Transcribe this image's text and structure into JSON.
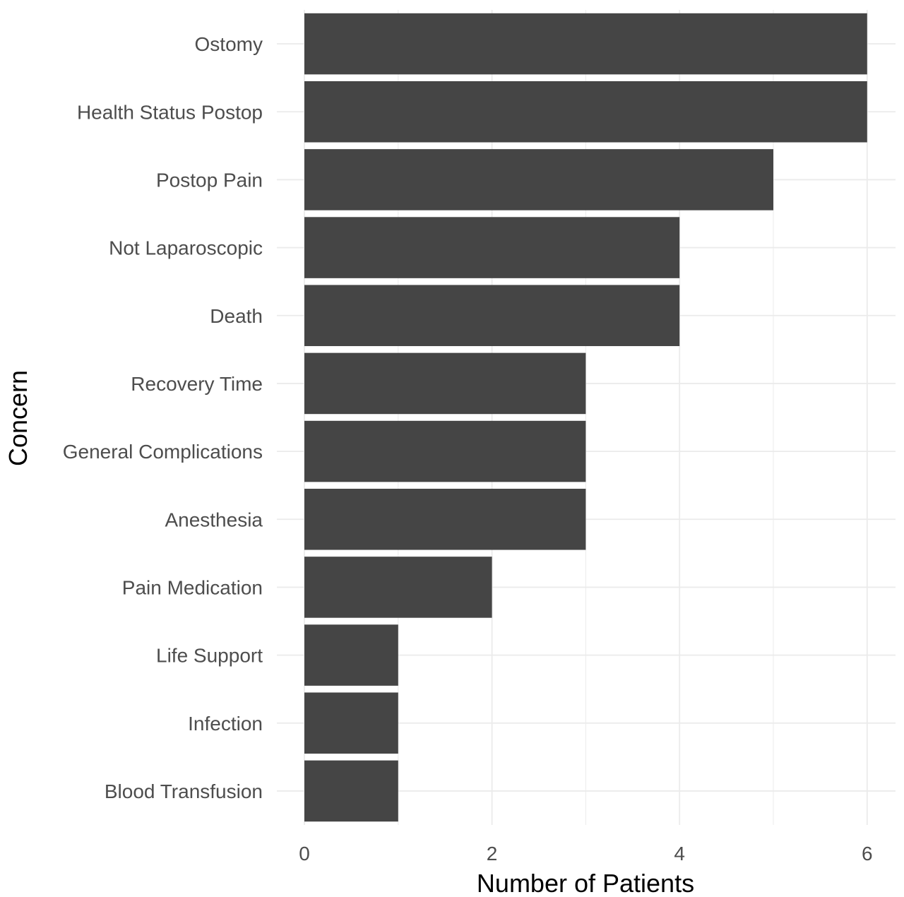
{
  "chart_data": {
    "type": "bar",
    "orientation": "horizontal",
    "categories": [
      "Ostomy",
      "Health Status Postop",
      "Postop Pain",
      "Not Laparoscopic",
      "Death",
      "Recovery Time",
      "General Complications",
      "Anesthesia",
      "Pain Medication",
      "Life Support",
      "Infection",
      "Blood Transfusion"
    ],
    "values": [
      6,
      6,
      5,
      4,
      4,
      3,
      3,
      3,
      2,
      1,
      1,
      1
    ],
    "xlabel": "Number of Patients",
    "ylabel": "Concern",
    "xlim": [
      0,
      6.3
    ],
    "x_ticks": [
      0,
      2,
      4,
      6
    ],
    "grid": true,
    "bar_color": "#454545",
    "grid_color": "#ebebeb"
  }
}
